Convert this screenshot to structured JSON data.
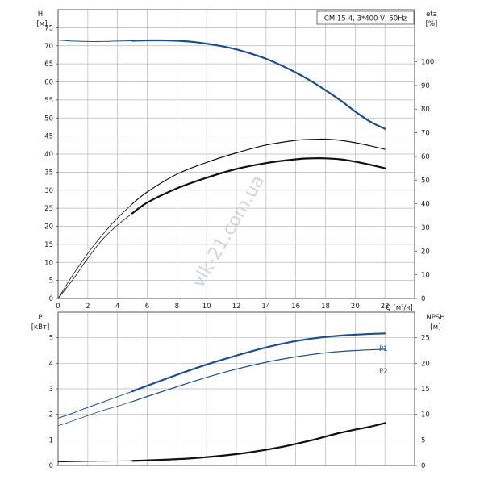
{
  "badge": "CM 15-4, 3*400 V, 50Hz",
  "watermark": "vlk-21.com.ua",
  "colors": {
    "blue": "#1f4e8c",
    "black": "#111111",
    "grid": "#b8b8b8"
  },
  "chart_data": [
    {
      "type": "line",
      "panel": "top",
      "x_axis": {
        "label": "Q [м³/ч]",
        "range": [
          0,
          24
        ],
        "ticks": [
          0,
          2,
          4,
          6,
          8,
          10,
          12,
          14,
          16,
          18,
          20,
          22
        ]
      },
      "y_left": {
        "label_top": "H",
        "label_bottom": "[м]",
        "range": [
          0,
          80
        ],
        "ticks": [
          0,
          5,
          10,
          15,
          20,
          25,
          30,
          35,
          40,
          45,
          50,
          55,
          60,
          65,
          70,
          75
        ]
      },
      "y_right": {
        "label_top": "eta",
        "label_bottom": "[%]",
        "range": [
          0,
          122
        ],
        "ticks": [
          0,
          10,
          20,
          30,
          40,
          50,
          60,
          70,
          80,
          90,
          100
        ]
      },
      "grid": true,
      "series": [
        {
          "key": "H_thin",
          "axis": "left",
          "color": "#1f4e8c",
          "width": 1,
          "x": [
            0,
            1,
            2,
            3,
            4,
            5
          ],
          "y": [
            71.6,
            71.3,
            71.2,
            71.2,
            71.3,
            71.4
          ]
        },
        {
          "key": "H",
          "axis": "left",
          "color": "#1f4e8c",
          "width": 2.2,
          "x": [
            5,
            6,
            7,
            8,
            9,
            10,
            11,
            12,
            13,
            14,
            15,
            16,
            17,
            18,
            19,
            20,
            21,
            22
          ],
          "y": [
            71.4,
            71.5,
            71.5,
            71.4,
            71.1,
            70.6,
            69.9,
            69.0,
            67.8,
            66.4,
            64.6,
            62.6,
            60.3,
            57.7,
            54.9,
            51.8,
            49.0,
            47.0
          ]
        },
        {
          "key": "eta_outer_thin",
          "axis": "right",
          "color": "#111111",
          "width": 0.8,
          "x": [
            0,
            1,
            2,
            3,
            4,
            5
          ],
          "y": [
            0,
            10,
            19,
            27,
            34,
            40
          ]
        },
        {
          "key": "eta_outer",
          "axis": "right",
          "color": "#111111",
          "width": 1.2,
          "x": [
            5,
            6,
            8,
            10,
            12,
            14,
            16,
            17,
            18,
            19,
            20,
            21,
            22
          ],
          "y": [
            40,
            45,
            52.5,
            57.5,
            61.5,
            64.8,
            66.8,
            67.2,
            67.3,
            66.8,
            65.8,
            64.5,
            63.0
          ]
        },
        {
          "key": "eta_inner_thin",
          "axis": "right",
          "color": "#111111",
          "width": 0.8,
          "x": [
            0,
            1,
            2,
            3,
            4,
            5
          ],
          "y": [
            0,
            8,
            17,
            25,
            31,
            36
          ]
        },
        {
          "key": "eta_inner",
          "axis": "right",
          "color": "#111111",
          "width": 2.2,
          "x": [
            5,
            6,
            8,
            10,
            12,
            14,
            16,
            17,
            18,
            19,
            20,
            21,
            22
          ],
          "y": [
            36,
            40.5,
            46.5,
            51,
            54.7,
            57.2,
            58.8,
            59.2,
            59.2,
            58.8,
            57.8,
            56.5,
            55.0
          ]
        }
      ]
    },
    {
      "type": "line",
      "panel": "bottom",
      "x_axis": {
        "range": [
          0,
          24
        ]
      },
      "y_left": {
        "label_top": "P",
        "label_bottom": "[кВт]",
        "range": [
          0,
          6
        ],
        "ticks": [
          0,
          1,
          2,
          3,
          4,
          5
        ]
      },
      "y_right": {
        "label_top": "NPSH",
        "label_bottom": "[м]",
        "range": [
          0,
          30
        ],
        "ticks": [
          0,
          5,
          10,
          15,
          20,
          25
        ]
      },
      "grid": true,
      "series": [
        {
          "key": "P1_thin",
          "name": "P1",
          "axis": "left",
          "color": "#1f4e8c",
          "width": 1,
          "x": [
            0,
            1,
            2,
            3,
            4,
            5
          ],
          "y": [
            1.85,
            2.05,
            2.27,
            2.48,
            2.69,
            2.9
          ]
        },
        {
          "key": "P1",
          "name": "P1",
          "axis": "left",
          "color": "#1f4e8c",
          "width": 2.2,
          "x": [
            5,
            6,
            8,
            10,
            12,
            14,
            16,
            18,
            20,
            22
          ],
          "y": [
            2.9,
            3.12,
            3.55,
            3.95,
            4.3,
            4.62,
            4.87,
            5.03,
            5.12,
            5.17
          ]
        },
        {
          "key": "P2_thin",
          "name": "P2",
          "axis": "left",
          "color": "#1f4e8c",
          "width": 0.8,
          "x": [
            0,
            1,
            2,
            3,
            4,
            5
          ],
          "y": [
            1.55,
            1.75,
            1.95,
            2.15,
            2.32,
            2.5
          ]
        },
        {
          "key": "P2",
          "name": "P2",
          "axis": "left",
          "color": "#1f4e8c",
          "width": 1.2,
          "x": [
            5,
            6,
            8,
            10,
            12,
            14,
            16,
            18,
            20,
            22
          ],
          "y": [
            2.5,
            2.7,
            3.08,
            3.45,
            3.77,
            4.04,
            4.25,
            4.41,
            4.5,
            4.55
          ]
        },
        {
          "key": "NPSH_thin",
          "axis": "right",
          "color": "#111111",
          "width": 1,
          "x": [
            0,
            2,
            5
          ],
          "y": [
            0.7,
            0.8,
            0.9
          ]
        },
        {
          "key": "NPSH",
          "axis": "right",
          "color": "#111111",
          "width": 2.2,
          "x": [
            5,
            7,
            9,
            11,
            13,
            15,
            17,
            19,
            21,
            22
          ],
          "y": [
            0.9,
            1.1,
            1.4,
            1.9,
            2.6,
            3.6,
            4.9,
            6.4,
            7.6,
            8.3
          ]
        }
      ],
      "curve_labels": [
        "P1",
        "P2"
      ]
    }
  ],
  "top_axis_labels": {
    "left_top": "H",
    "left_bottom": "[м]",
    "right_top": "eta",
    "right_bottom": "[%]",
    "x_unit": "Q [м³/ч]"
  },
  "bottom_axis_labels": {
    "left_top": "P",
    "left_bottom": "[кВт]",
    "right_top": "NPSH",
    "right_bottom": "[м]",
    "p1": "P1",
    "p2": "P2"
  }
}
